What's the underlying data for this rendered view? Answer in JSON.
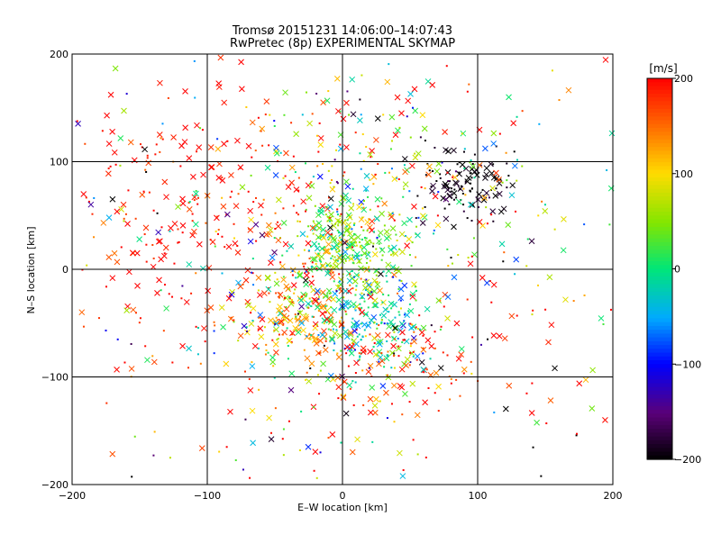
{
  "chart_data": {
    "type": "scatter",
    "title": "Tromsø 20151231 14:06:00–14:07:43",
    "subtitle": "RwPretec (8p) EXPERIMENTAL SKYMAP",
    "xlabel": "E–W location [km]",
    "ylabel": "N–S location [km]",
    "xlim": [
      -200,
      200
    ],
    "ylim": [
      -200,
      200
    ],
    "xticks": [
      -200,
      -100,
      0,
      100,
      200
    ],
    "yticks": [
      -200,
      -100,
      0,
      100,
      200
    ],
    "grid": true,
    "colorbar": {
      "label": "[m/s]",
      "min": -200,
      "max": 200,
      "ticks": [
        -200,
        -100,
        0,
        100,
        200
      ]
    },
    "marker_note": "points are small dots and x-markers, colored by velocity",
    "clusters": [
      {
        "x": -30,
        "y": -35,
        "spread": 25,
        "count": 220,
        "v_mean": 120,
        "v_sd": 60
      },
      {
        "x": 5,
        "y": 20,
        "spread": 22,
        "count": 260,
        "v_mean": 40,
        "v_sd": 40
      },
      {
        "x": 15,
        "y": -50,
        "spread": 25,
        "count": 230,
        "v_mean": -10,
        "v_sd": 50
      },
      {
        "x": 90,
        "y": 80,
        "spread": 18,
        "count": 120,
        "v_mean": -200,
        "v_sd": 15
      },
      {
        "x": -110,
        "y": 60,
        "spread": 55,
        "count": 230,
        "v_mean": 190,
        "v_sd": 20
      },
      {
        "x": 40,
        "y": -80,
        "spread": 35,
        "count": 120,
        "v_mean": 180,
        "v_sd": 40
      },
      {
        "x": 40,
        "y": 90,
        "spread": 45,
        "count": 120,
        "v_mean": 60,
        "v_sd": 90
      },
      {
        "x": 0,
        "y": 0,
        "spread": 140,
        "count": 600,
        "v_mean": 60,
        "v_sd": 150
      }
    ]
  }
}
